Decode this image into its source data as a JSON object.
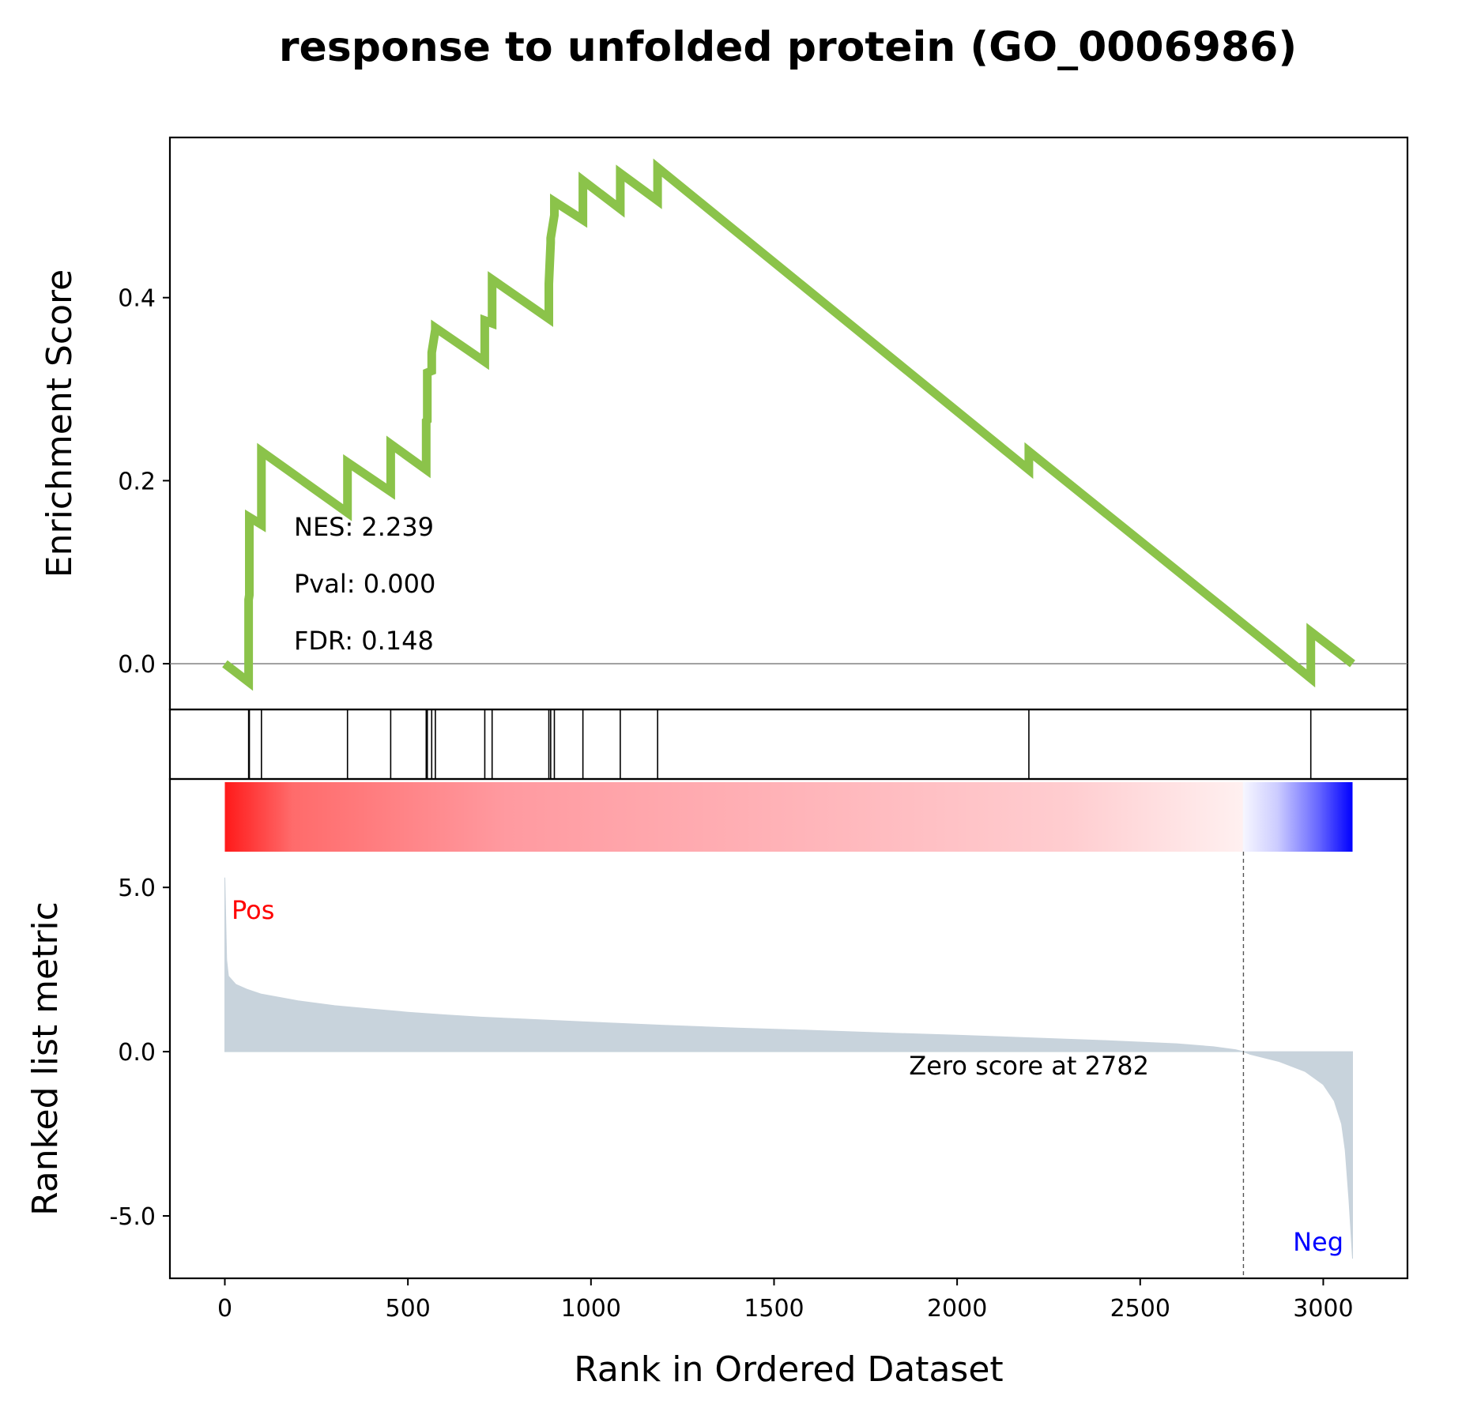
{
  "chart_data": {
    "type": "line",
    "title": "response to unfolded protein (GO_0006986)",
    "xlabel": "Rank in Ordered Dataset",
    "xlim": [
      -150,
      3230
    ],
    "xticks": [
      "0",
      "500",
      "1000",
      "1500",
      "2000",
      "2500",
      "3000"
    ],
    "panels": {
      "enrichment": {
        "ylabel": "Enrichment Score",
        "ylim": [
          -0.05,
          0.575
        ],
        "yticks": [
          "0.0",
          "0.2",
          "0.4"
        ],
        "line_color": "#8bc34a",
        "x": [
          0,
          65,
          65,
          67,
          67,
          100,
          100,
          335,
          335,
          453,
          453,
          550,
          550,
          553,
          553,
          565,
          565,
          575,
          575,
          710,
          710,
          730,
          730,
          885,
          885,
          890,
          890,
          900,
          900,
          978,
          978,
          1080,
          1080,
          1182,
          1182,
          2196,
          2196,
          2966,
          2966,
          3080
        ],
        "y": [
          0.0,
          -0.02,
          0.07,
          0.075,
          0.16,
          0.152,
          0.232,
          0.165,
          0.22,
          0.188,
          0.24,
          0.212,
          0.265,
          0.266,
          0.318,
          0.32,
          0.34,
          0.365,
          0.367,
          0.33,
          0.375,
          0.372,
          0.42,
          0.377,
          0.415,
          0.46,
          0.465,
          0.49,
          0.505,
          0.485,
          0.528,
          0.497,
          0.536,
          0.506,
          0.542,
          0.212,
          0.232,
          -0.016,
          0.035,
          0.0
        ]
      },
      "hits": {
        "positions": [
          65,
          67,
          100,
          335,
          453,
          550,
          553,
          565,
          575,
          710,
          730,
          885,
          890,
          900,
          978,
          1080,
          1182,
          2196,
          2966
        ]
      },
      "ranked_metric": {
        "ylabel": "Ranked list metric",
        "ylim": [
          -6.9,
          8.3
        ],
        "yticks": [
          "5.0",
          "0.0",
          "-5.0"
        ],
        "fill_color": "#c8d3dc",
        "x": [
          0,
          5,
          10,
          30,
          60,
          100,
          150,
          200,
          300,
          400,
          500,
          600,
          700,
          800,
          900,
          1000,
          1200,
          1400,
          1600,
          1800,
          2000,
          2200,
          2400,
          2600,
          2700,
          2760,
          2782,
          2800,
          2880,
          2950,
          3000,
          3030,
          3050,
          3060,
          3070,
          3080
        ],
        "y": [
          5.3,
          2.8,
          2.3,
          2.05,
          1.9,
          1.75,
          1.65,
          1.55,
          1.4,
          1.3,
          1.2,
          1.12,
          1.05,
          1.0,
          0.95,
          0.9,
          0.8,
          0.72,
          0.65,
          0.57,
          0.5,
          0.42,
          0.34,
          0.24,
          0.15,
          0.06,
          0.0,
          -0.08,
          -0.3,
          -0.6,
          -1.0,
          -1.5,
          -2.2,
          -3.0,
          -4.5,
          -6.3
        ],
        "zero_cross_rank": 2782,
        "zero_score_text": "Zero score at 2782",
        "pos_label": "Pos",
        "neg_label": "Neg",
        "pos_color": "#ff0000",
        "neg_color": "#0000ff"
      }
    },
    "stats": {
      "nes": "NES: 2.239",
      "pval": "Pval: 0.000",
      "fdr": "FDR: 0.148"
    }
  }
}
